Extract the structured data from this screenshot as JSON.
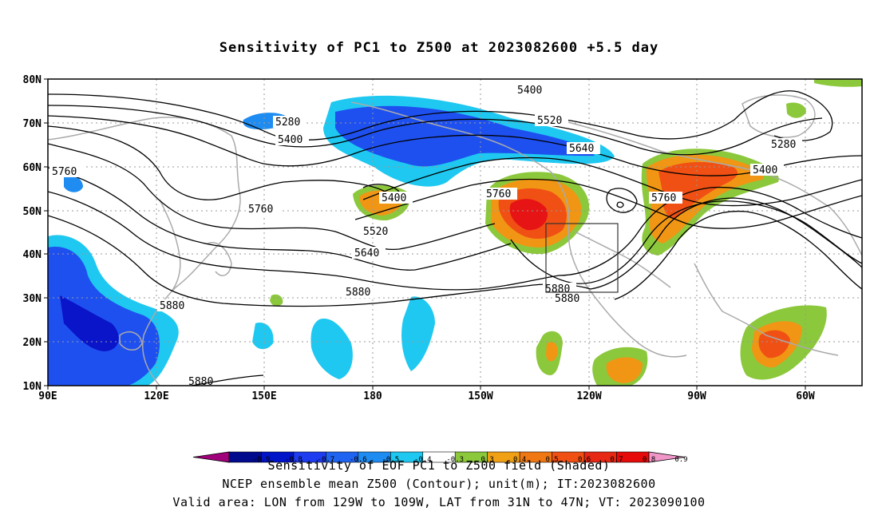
{
  "title": "Sensitivity of PC1 to Z500 at 2023082600 +5.5 day",
  "map": {
    "lon_labels": [
      "90E",
      "120E",
      "150E",
      "180",
      "150W",
      "120W",
      "90W",
      "60W"
    ],
    "lat_labels": [
      "80N",
      "70N",
      "60N",
      "50N",
      "40N",
      "30N",
      "20N",
      "10N"
    ],
    "contour_labels": [
      "5280",
      "5400",
      "5400",
      "5520",
      "5640",
      "5760",
      "5760",
      "5400",
      "5520",
      "5640",
      "5880",
      "5880",
      "5880",
      "5880",
      "5760",
      "5760",
      "5280",
      "5400"
    ],
    "colors": {
      "deep_blue": "#0a14c8",
      "blue": "#1e50f0",
      "mid_blue": "#1e8cf0",
      "light_blue": "#1ec8f0",
      "green": "#8cc83c",
      "orange": "#f09614",
      "red_orange": "#f05014",
      "red": "#e61414",
      "contour": "#000000",
      "coast": "#aaaaaa"
    }
  },
  "colorbar": {
    "labels": [
      "-0.9",
      "-0.8",
      "-0.7",
      "-0.6",
      "-0.5",
      "-0.4",
      "-0.3",
      "0.3",
      "0.4",
      "0.5",
      "0.6",
      "0.7",
      "0.8",
      "0.9"
    ],
    "colors": [
      "#a0007a",
      "#000a8c",
      "#0014c8",
      "#1e3cf0",
      "#1e64f0",
      "#1e8cf0",
      "#1ec8f0",
      "#ffffff",
      "#8cc83c",
      "#f0a014",
      "#f07814",
      "#f05014",
      "#e62814",
      "#e60a0a",
      "#f096c8"
    ]
  },
  "footer": {
    "line1": "Sensitivity of EOF PC1 to Z500 field (Shaded)",
    "line2": "NCEP ensemble mean Z500 (Contour); unit(m); IT:2023082600",
    "line3": "Valid area: LON from 129W to 109W, LAT from 31N to 47N; VT: 2023090100"
  }
}
